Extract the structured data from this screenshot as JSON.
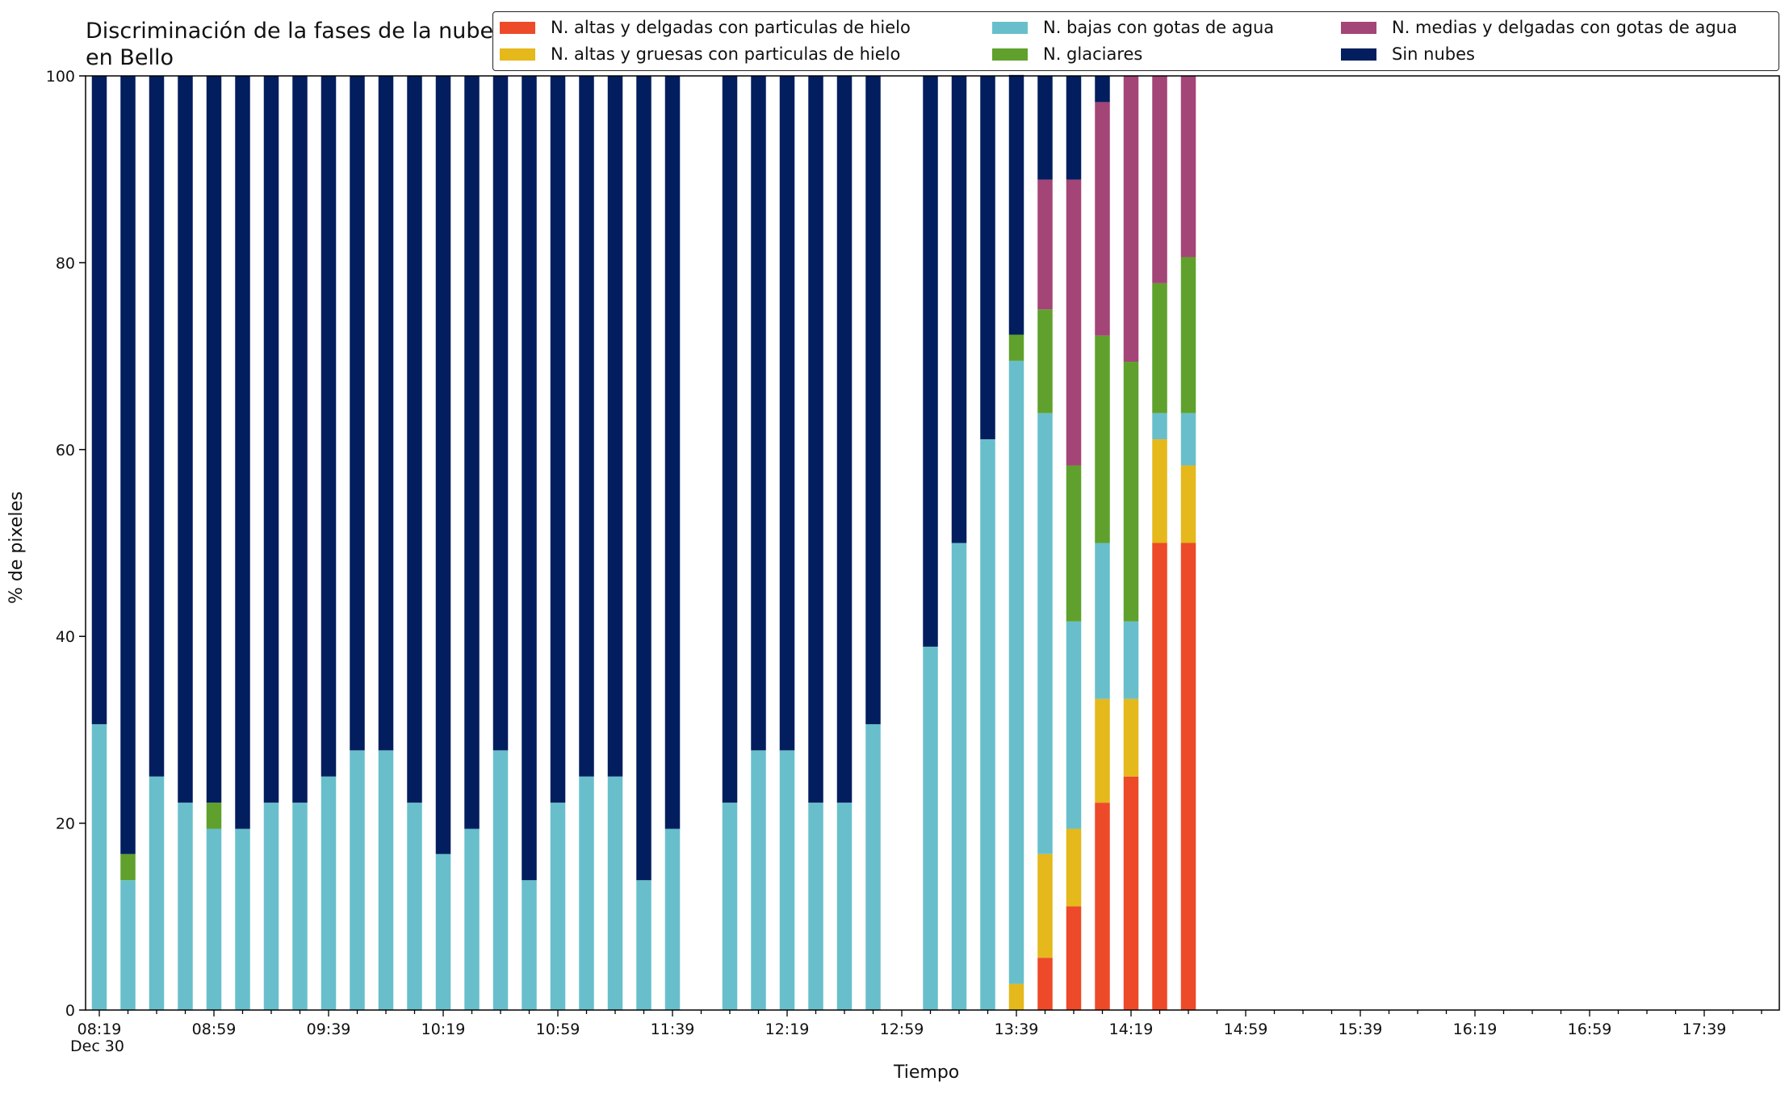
{
  "chart_data": {
    "type": "bar",
    "stacked": true,
    "title": "Discriminación de la fases de la nube en Bello",
    "xlabel": "Tiempo",
    "ylabel": "% de pixeles",
    "date_label": "Dec 30",
    "ylim": [
      0,
      100
    ],
    "yticks": [
      0,
      20,
      40,
      60,
      80,
      100
    ],
    "xtick_labels": [
      "08:19",
      "08:59",
      "09:39",
      "10:19",
      "10:59",
      "11:39",
      "12:19",
      "12:59",
      "13:39",
      "14:19",
      "14:59",
      "15:39",
      "16:19",
      "16:59",
      "17:39"
    ],
    "grid": false,
    "legend_position": "top-right",
    "categories": [
      "08:19",
      "08:29",
      "08:39",
      "08:49",
      "08:59",
      "09:09",
      "09:19",
      "09:29",
      "09:39",
      "09:49",
      "09:59",
      "10:09",
      "10:19",
      "10:29",
      "10:39",
      "10:49",
      "10:59",
      "11:09",
      "11:19",
      "11:29",
      "11:39",
      "11:49",
      "11:59",
      "12:09",
      "12:19",
      "12:29",
      "12:39",
      "12:49",
      "12:59",
      "13:09",
      "13:19",
      "13:29",
      "13:39",
      "13:49",
      "13:59",
      "14:09",
      "14:19",
      "14:29",
      "14:39"
    ],
    "series": [
      {
        "name": "N. altas y delgadas con particulas de hielo",
        "color": "#ed4a2a",
        "values": [
          0,
          0,
          0,
          0,
          0,
          0,
          0,
          0,
          0,
          0,
          0,
          0,
          0,
          0,
          0,
          0,
          0,
          0,
          0,
          0,
          0,
          null,
          0,
          0,
          0,
          0,
          0,
          0,
          null,
          0,
          0,
          0,
          0,
          5.6,
          11.1,
          22.2,
          25,
          50,
          50
        ]
      },
      {
        "name": "N. altas y gruesas con particulas de hielo",
        "color": "#e5b81b",
        "values": [
          0,
          0,
          0,
          0,
          0,
          0,
          0,
          0,
          0,
          0,
          0,
          0,
          0,
          0,
          0,
          0,
          0,
          0,
          0,
          0,
          0,
          null,
          0,
          0,
          0,
          0,
          0,
          0,
          null,
          0,
          0,
          0,
          2.8,
          11.1,
          8.3,
          11.1,
          8.3,
          11.1,
          8.3
        ]
      },
      {
        "name": "N. bajas con gotas de agua",
        "color": "#68bfcb",
        "values": [
          30.6,
          13.9,
          25,
          22.2,
          19.4,
          19.4,
          22.2,
          22.2,
          25,
          27.8,
          27.8,
          22.2,
          16.7,
          19.4,
          27.8,
          13.9,
          22.2,
          25,
          25,
          13.9,
          19.4,
          null,
          22.2,
          27.8,
          27.8,
          22.2,
          22.2,
          30.6,
          null,
          38.9,
          50,
          61.1,
          66.7,
          47.2,
          22.2,
          16.7,
          8.3,
          2.8,
          5.6
        ]
      },
      {
        "name": "N. glaciares",
        "color": "#5fa12c",
        "values": [
          0,
          2.8,
          0,
          0,
          2.8,
          0,
          0,
          0,
          0,
          0,
          0,
          0,
          0,
          0,
          0,
          0,
          0,
          0,
          0,
          0,
          0,
          null,
          0,
          0,
          0,
          0,
          0,
          0,
          null,
          0,
          0,
          0,
          2.8,
          11.1,
          16.7,
          22.2,
          27.8,
          13.9,
          16.7
        ]
      },
      {
        "name": "N. medias y delgadas con gotas de agua",
        "color": "#a44577",
        "values": [
          0,
          0,
          0,
          0,
          0,
          0,
          0,
          0,
          0,
          0,
          0,
          0,
          0,
          0,
          0,
          0,
          0,
          0,
          0,
          0,
          0,
          null,
          0,
          0,
          0,
          0,
          0,
          0,
          null,
          0,
          0,
          0,
          0,
          13.9,
          30.6,
          25,
          30.6,
          22.2,
          19.4
        ]
      },
      {
        "name": "Sin nubes",
        "color": "#021e5e",
        "values": [
          69.4,
          83.3,
          75,
          77.8,
          77.8,
          80.6,
          77.8,
          77.8,
          75,
          72.2,
          72.2,
          77.8,
          83.3,
          80.6,
          72.2,
          86.1,
          77.8,
          75,
          75,
          86.1,
          80.6,
          null,
          77.8,
          72.2,
          72.2,
          77.8,
          77.8,
          69.4,
          null,
          61.1,
          50,
          38.9,
          27.8,
          11.1,
          11.1,
          2.8,
          0,
          0,
          0
        ]
      }
    ]
  }
}
